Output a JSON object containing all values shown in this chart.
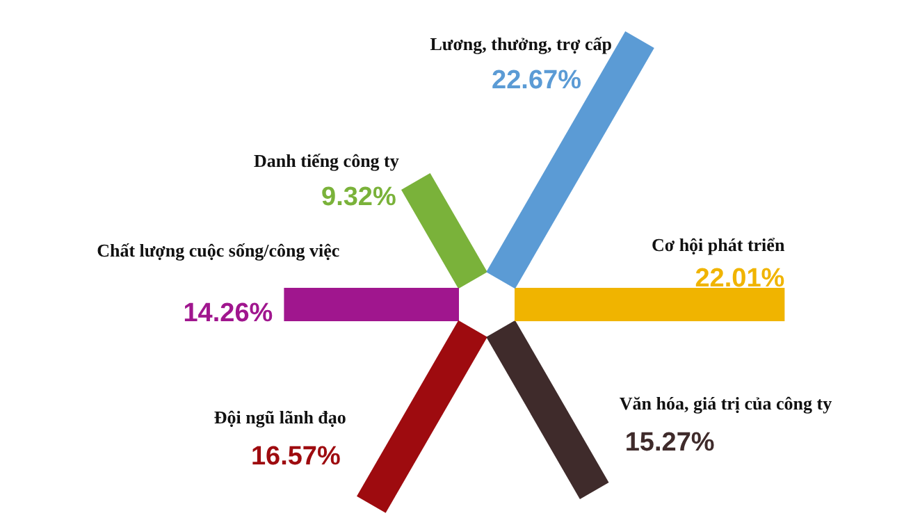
{
  "chart_data": {
    "type": "other",
    "categories": [
      "Lương, thưởng, trợ cấp",
      "Cơ hội phát triển",
      "Văn hóa, giá trị của công ty",
      "Đội ngũ lãnh đạo",
      "Chất lượng cuộc sống/công việc",
      "Danh tiếng công ty"
    ],
    "values": [
      22.67,
      22.01,
      15.27,
      16.57,
      14.26,
      9.32
    ],
    "value_labels": [
      "22.67%",
      "22.01%",
      "15.27%",
      "16.57%",
      "14.26%",
      "9.32%"
    ],
    "colors": [
      "#5b9bd5",
      "#f0b400",
      "#3f2b2b",
      "#9e0b0f",
      "#a0168e",
      "#7ab23a"
    ]
  }
}
